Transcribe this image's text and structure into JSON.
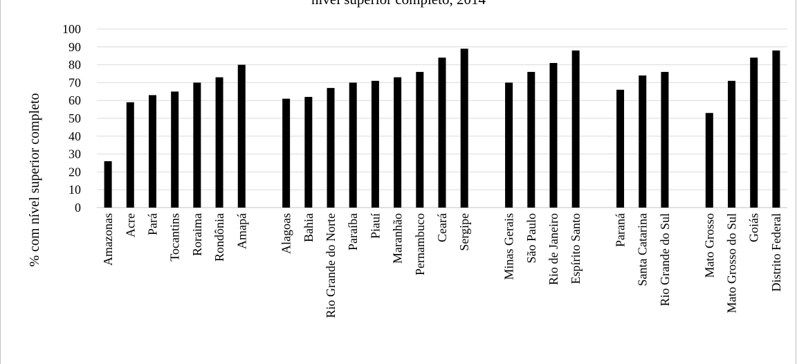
{
  "chart_data": {
    "type": "bar",
    "title": "nível superior completo, 2014",
    "xlabel": "",
    "ylabel": "% com nível superior completo",
    "ylim": [
      0,
      100
    ],
    "yticks": [
      0,
      10,
      20,
      30,
      40,
      50,
      60,
      70,
      80,
      90,
      100
    ],
    "grid": true,
    "legend": "none",
    "bar_color": "#000000",
    "grid_color": "#d9d9d9",
    "groups": [
      {
        "categories": [
          "Amazonas",
          "Acre",
          "Pará",
          "Tocantins",
          "Roraima",
          "Rondônia",
          "Amapá"
        ],
        "values": [
          26,
          59,
          63,
          65,
          70,
          73,
          80
        ]
      },
      {
        "categories": [
          "Alagoas",
          "Bahia",
          "Rio Grande do Norte",
          "Paraíba",
          "Piauí",
          "Maranhão",
          "Pernambuco",
          "Ceará",
          "Sergipe"
        ],
        "values": [
          61,
          62,
          67,
          70,
          71,
          73,
          76,
          84,
          89
        ]
      },
      {
        "categories": [
          "Minas Gerais",
          "São Paulo",
          "Rio de Janeiro",
          "Espírito Santo"
        ],
        "values": [
          70,
          76,
          81,
          88
        ]
      },
      {
        "categories": [
          "Paraná",
          "Santa Catarina",
          "Rio Grande do Sul"
        ],
        "values": [
          66,
          74,
          76
        ]
      },
      {
        "categories": [
          "Mato Grosso",
          "Mato Grosso do Sul",
          "Goiás",
          "Distrito Federal"
        ],
        "values": [
          53,
          71,
          84,
          88
        ]
      }
    ]
  }
}
